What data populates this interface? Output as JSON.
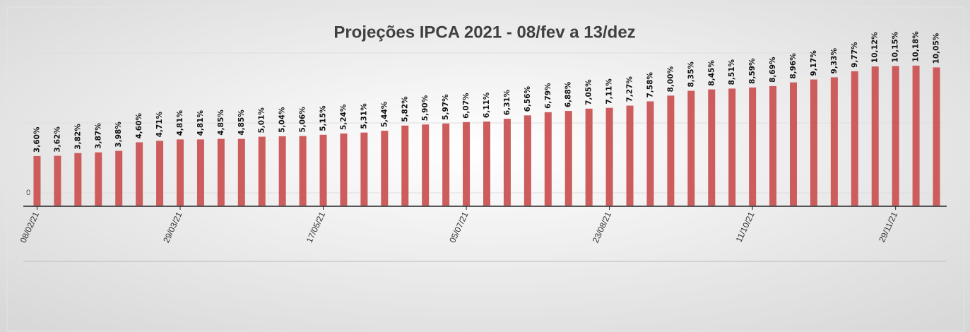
{
  "chart_data": {
    "type": "bar",
    "title": "Projeções IPCA 2021 - 08/fev a 13/dez",
    "categories": [
      "08/02/21",
      null,
      null,
      null,
      null,
      null,
      null,
      "29/03/21",
      null,
      null,
      null,
      null,
      null,
      null,
      "17/05/21",
      null,
      null,
      null,
      null,
      null,
      null,
      "05/07/21",
      null,
      null,
      null,
      null,
      null,
      null,
      "23/08/21",
      null,
      null,
      null,
      null,
      null,
      null,
      "11/10/21",
      null,
      null,
      null,
      null,
      null,
      null,
      "29/11/21",
      null,
      null
    ],
    "values": [
      3.6,
      3.62,
      3.82,
      3.87,
      3.98,
      4.6,
      4.71,
      4.81,
      4.81,
      4.85,
      4.85,
      5.01,
      5.04,
      5.06,
      5.15,
      5.24,
      5.31,
      5.44,
      5.82,
      5.9,
      5.97,
      6.07,
      6.11,
      6.31,
      6.56,
      6.79,
      6.88,
      7.05,
      7.11,
      7.27,
      7.58,
      8.0,
      8.35,
      8.45,
      8.51,
      8.59,
      8.69,
      8.96,
      9.17,
      9.33,
      9.77,
      10.12,
      10.15,
      10.18,
      10.05
    ],
    "value_labels": [
      "3,60%",
      "3,62%",
      "3,82%",
      "3,87%",
      "3,98%",
      "4,60%",
      "4,71%",
      "4,81%",
      "4,81%",
      "4,85%",
      "4,85%",
      "5,01%",
      "5,04%",
      "5,06%",
      "5,15%",
      "5,24%",
      "5,31%",
      "5,44%",
      "5,82%",
      "5,90%",
      "5,97%",
      "6,07%",
      "6,11%",
      "6,31%",
      "6,56%",
      "6,79%",
      "6,88%",
      "7,05%",
      "7,11%",
      "7,27%",
      "7,58%",
      "8,00%",
      "8,35%",
      "8,45%",
      "8,51%",
      "8,59%",
      "8,69%",
      "8,96%",
      "9,17%",
      "9,33%",
      "9,77%",
      "10,12%",
      "10,15%",
      "10,18%",
      "10,05%"
    ],
    "color": "#cd5c5c",
    "ylim": [
      0,
      11.1
    ],
    "yticks": [
      0
    ],
    "grid": true
  }
}
